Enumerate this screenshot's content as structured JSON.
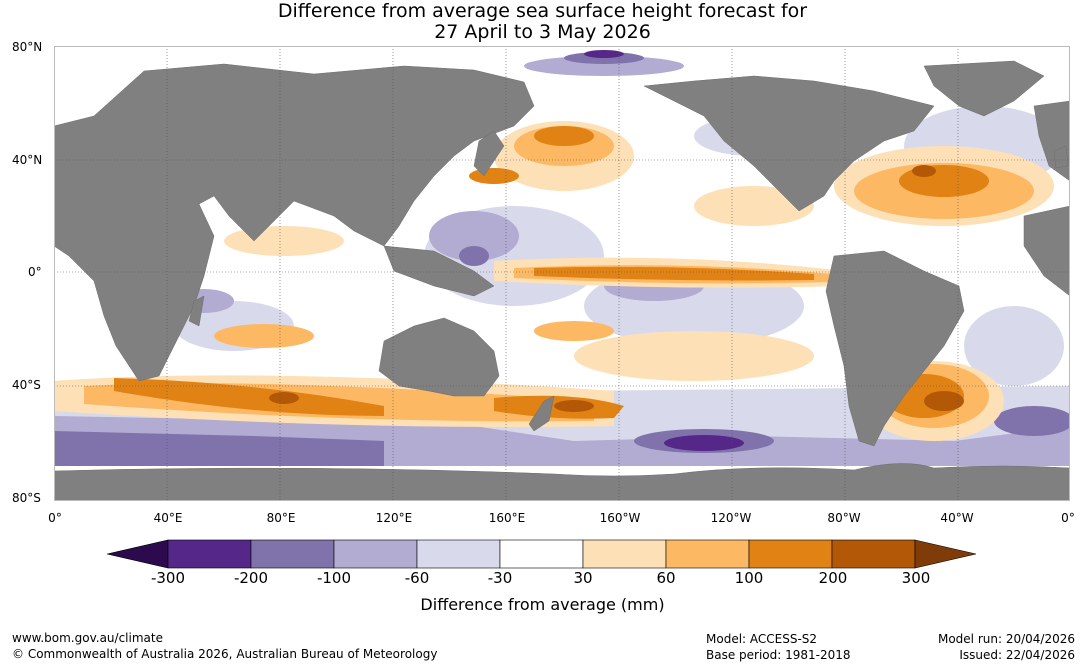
{
  "title": {
    "line1": "Difference from average sea surface height forecast for",
    "line2": "27 April to 3 May 2026"
  },
  "map": {
    "lat_labels": [
      "80°N",
      "40°N",
      "0°",
      "40°S",
      "80°S"
    ],
    "lon_labels": [
      "0°",
      "40°E",
      "80°E",
      "120°E",
      "160°E",
      "160°W",
      "120°W",
      "80°W",
      "40°W",
      "0°"
    ]
  },
  "colorbar": {
    "title": "Difference from average (mm)",
    "tick_labels": [
      "-300",
      "-200",
      "-100",
      "-60",
      "-30",
      "30",
      "60",
      "100",
      "200",
      "300"
    ],
    "colors": [
      "#2d0a4e",
      "#542789",
      "#8073ac",
      "#b2abd2",
      "#d8daeb",
      "#ffffff",
      "#fee0b6",
      "#fdb863",
      "#e08214",
      "#b35806",
      "#7f3b08"
    ]
  },
  "colors": {
    "land": "#808080",
    "grid": "#555555"
  },
  "footer": {
    "website": "www.bom.gov.au/climate",
    "copyright": "© Commonwealth of Australia 2026, Australian Bureau of Meteorology",
    "model": "Model: ACCESS-S2",
    "base_period": "Base period: 1981-2018",
    "model_run": "Model run: 20/04/2026",
    "issued": "Issued: 22/04/2026"
  }
}
